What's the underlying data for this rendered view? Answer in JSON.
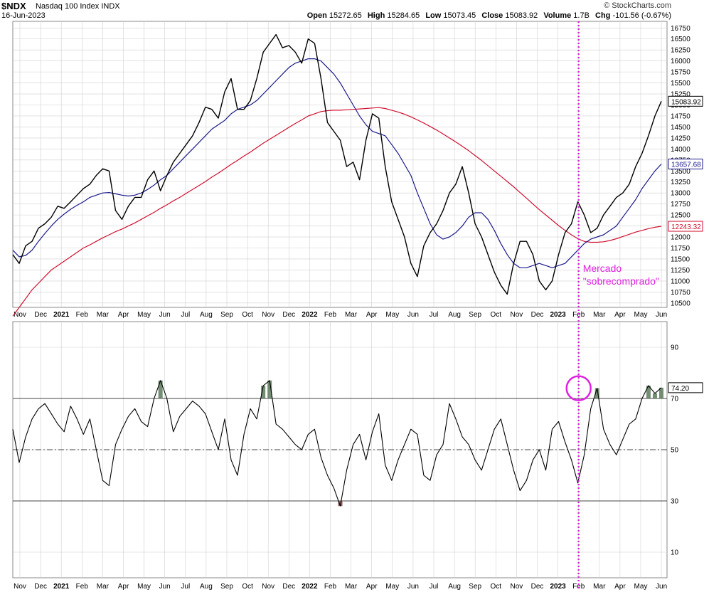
{
  "header": {
    "ticker": "$NDX",
    "name": "Nasdaq 100 Index  INDX",
    "date": "16-Jun-2023",
    "copyright": "© StockCharts.com",
    "open_label": "Open",
    "open": "15272.65",
    "high_label": "High",
    "high": "15284.65",
    "low_label": "Low",
    "low": "15073.45",
    "close_label": "Close",
    "close": "15083.92",
    "volume_label": "Volume",
    "volume": "1.7B",
    "chg_label": "Chg",
    "chg": "-101.56 (-0.67%)"
  },
  "colors": {
    "price": "#000000",
    "ma50": "#1a1a8c",
    "ma200": "#d01030",
    "marker": "#e020e0",
    "rsi_overbought_fill": "#5a7a5a",
    "rsi_oversold_fill": "#8a4a4a",
    "grid": "#d0d0d0"
  },
  "chart_data": [
    {
      "type": "line",
      "series": [
        {
          "name": "$NDX",
          "last_value": "15083.92",
          "values": [
            11600,
            11400,
            11800,
            11900,
            12200,
            12300,
            12450,
            12700,
            12650,
            12800,
            12950,
            13100,
            13200,
            13400,
            13550,
            13500,
            12600,
            12400,
            12700,
            12900,
            12900,
            13300,
            13500,
            13050,
            13400,
            13700,
            13900,
            14100,
            14300,
            14600,
            14950,
            14900,
            14700,
            15300,
            15600,
            14900,
            14900,
            15100,
            15600,
            16200,
            16400,
            16600,
            16300,
            16350,
            16200,
            15950,
            16500,
            16400,
            15600,
            14600,
            14400,
            14200,
            13600,
            13700,
            13300,
            14200,
            14800,
            14700,
            13600,
            12800,
            12400,
            12000,
            11400,
            11100,
            11800,
            12100,
            12300,
            12600,
            13000,
            13200,
            13600,
            13000,
            12300,
            12000,
            11600,
            11200,
            10900,
            10700,
            11400,
            11900,
            11900,
            11600,
            11000,
            10800,
            11000,
            11600,
            12100,
            12300,
            12800,
            12500,
            12100,
            12200,
            12500,
            12700,
            12900,
            13000,
            13200,
            13600,
            13900,
            14300,
            14750,
            15084
          ]
        },
        {
          "name": "MA50",
          "last_value": "13657.68",
          "values": [
            11700,
            11550,
            11580,
            11700,
            11900,
            12080,
            12250,
            12400,
            12520,
            12630,
            12720,
            12800,
            12900,
            12950,
            13000,
            13010,
            12980,
            12950,
            12930,
            12950,
            13000,
            13080,
            13180,
            13300,
            13400,
            13550,
            13700,
            13850,
            14000,
            14150,
            14300,
            14450,
            14550,
            14650,
            14800,
            14900,
            14950,
            15000,
            15100,
            15250,
            15400,
            15550,
            15700,
            15850,
            15950,
            16000,
            16050,
            16050,
            16000,
            15850,
            15700,
            15500,
            15250,
            15000,
            14750,
            14550,
            14400,
            14350,
            14300,
            14100,
            13900,
            13650,
            13400,
            13000,
            12650,
            12300,
            12050,
            11950,
            12000,
            12100,
            12250,
            12450,
            12550,
            12550,
            12400,
            12150,
            11850,
            11600,
            11400,
            11300,
            11300,
            11350,
            11400,
            11350,
            11300,
            11350,
            11400,
            11550,
            11700,
            11850,
            11950,
            12000,
            12050,
            12150,
            12250,
            12450,
            12650,
            12850,
            13100,
            13300,
            13500,
            13658
          ]
        },
        {
          "name": "MA200",
          "last_value": "12243.32",
          "values": [
            10200,
            10400,
            10600,
            10800,
            10950,
            11100,
            11250,
            11350,
            11450,
            11550,
            11650,
            11750,
            11820,
            11900,
            11980,
            12050,
            12120,
            12180,
            12250,
            12320,
            12400,
            12480,
            12560,
            12650,
            12730,
            12820,
            12900,
            12990,
            13080,
            13170,
            13260,
            13360,
            13450,
            13550,
            13650,
            13740,
            13840,
            13930,
            14030,
            14130,
            14220,
            14310,
            14400,
            14490,
            14580,
            14660,
            14750,
            14800,
            14850,
            14870,
            14880,
            14880,
            14890,
            14900,
            14910,
            14920,
            14930,
            14940,
            14920,
            14880,
            14840,
            14790,
            14730,
            14660,
            14590,
            14510,
            14430,
            14340,
            14250,
            14160,
            14060,
            13960,
            13850,
            13740,
            13620,
            13500,
            13380,
            13260,
            13140,
            13010,
            12880,
            12750,
            12620,
            12500,
            12380,
            12260,
            12150,
            12050,
            11960,
            11900,
            11880,
            11880,
            11890,
            11920,
            11960,
            12010,
            12060,
            12110,
            12150,
            12190,
            12220,
            12243
          ]
        }
      ],
      "y_ticks": [
        "16750",
        "16500",
        "16250",
        "16000",
        "15750",
        "15500",
        "15250",
        "15000",
        "14750",
        "14500",
        "14250",
        "14000",
        "13750",
        "13500",
        "13250",
        "13000",
        "12750",
        "12500",
        "12250",
        "12000",
        "11750",
        "11500",
        "11250",
        "11000",
        "10750",
        "10500"
      ],
      "ylim": [
        10400,
        16900
      ],
      "annotations": [
        "Mercado",
        "\"sobrecomprado\""
      ],
      "grid": true
    },
    {
      "type": "line",
      "series": [
        {
          "name": "RSI",
          "last_value": "74.20",
          "values": [
            58,
            45,
            55,
            62,
            66,
            68,
            64,
            60,
            57,
            67,
            62,
            56,
            62,
            50,
            38,
            36,
            52,
            58,
            63,
            66,
            61,
            59,
            70,
            77,
            70,
            57,
            63,
            66,
            69,
            67,
            64,
            57,
            50,
            62,
            46,
            40,
            56,
            66,
            62,
            75,
            77,
            60,
            58,
            55,
            52,
            50,
            56,
            58,
            47,
            40,
            35,
            28,
            42,
            52,
            56,
            46,
            57,
            64,
            44,
            38,
            46,
            52,
            58,
            56,
            40,
            38,
            48,
            52,
            68,
            62,
            55,
            52,
            46,
            42,
            50,
            58,
            62,
            52,
            42,
            34,
            38,
            46,
            50,
            42,
            58,
            61,
            53,
            46,
            37,
            48,
            66,
            74,
            58,
            52,
            48,
            54,
            60,
            62,
            70,
            75,
            72,
            74.2
          ]
        }
      ],
      "y_ticks": [
        "90",
        "70",
        "50",
        "30",
        "10"
      ],
      "ylim": [
        0,
        100
      ],
      "levels": [
        70,
        50,
        30
      ],
      "grid": true
    }
  ],
  "x_axis": {
    "labels": [
      "Nov",
      "Dec",
      "2021",
      "Feb",
      "Mar",
      "Apr",
      "May",
      "Jun",
      "Jul",
      "Aug",
      "Sep",
      "Oct",
      "Nov",
      "Dec",
      "2022",
      "Feb",
      "Mar",
      "Apr",
      "May",
      "Jun",
      "Jul",
      "Aug",
      "Sep",
      "Oct",
      "Nov",
      "Dec",
      "2023",
      "Feb",
      "Mar",
      "Apr",
      "May",
      "Jun"
    ],
    "bold": [
      "2021",
      "2022",
      "2023"
    ]
  }
}
